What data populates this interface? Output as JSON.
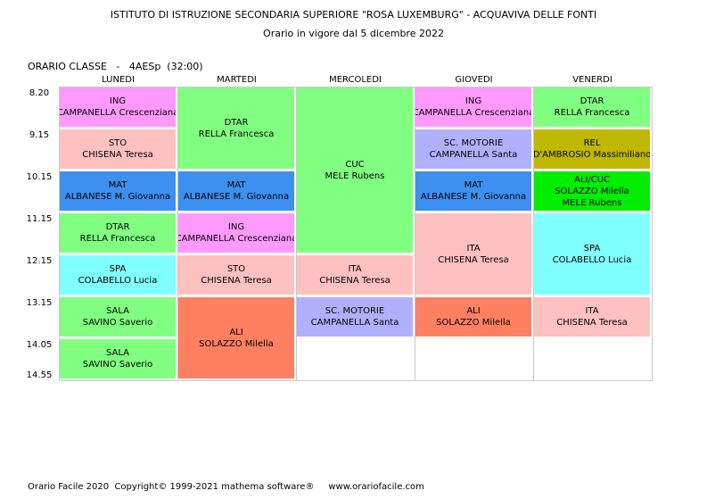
{
  "header": {
    "title": "ISTITUTO DI ISTRUZIONE SECONDARIA SUPERIORE \"ROSA LUXEMBURG\" - ACQUAVIVA DELLE FONTI",
    "subtitle": "Orario in vigore dal 5 dicembre 2022"
  },
  "class_label": "ORARIO CLASSE   -   4AESp  (32:00)",
  "days": [
    "LUNEDI",
    "MARTEDI",
    "MERCOLEDI",
    "GIOVEDI",
    "VENERDI"
  ],
  "times": [
    "8.20",
    "9.15",
    "10.15",
    "11.15",
    "12.15",
    "13.15",
    "14.05",
    "14.55"
  ],
  "lessons": [
    {
      "day": 0,
      "start": 0,
      "span": 1,
      "subject": "ING",
      "teacher": "CAMPANELLA Crescenziana",
      "color": "#ff99ff"
    },
    {
      "day": 0,
      "start": 1,
      "span": 1,
      "subject": "STO",
      "teacher": "CHISENA Teresa",
      "color": "#ffc0c0"
    },
    {
      "day": 0,
      "start": 2,
      "span": 1,
      "subject": "MAT",
      "teacher": "ALBANESE M. Giovanna",
      "color": "#3d8ff0"
    },
    {
      "day": 0,
      "start": 3,
      "span": 1,
      "subject": "DTAR",
      "teacher": "RELLA Francesca",
      "color": "#80ff80"
    },
    {
      "day": 0,
      "start": 4,
      "span": 1,
      "subject": "SPA",
      "teacher": "COLABELLO Lucia",
      "color": "#80ffff"
    },
    {
      "day": 0,
      "start": 5,
      "span": 1,
      "subject": "SALA",
      "teacher": "SAVINO Saverio",
      "color": "#80ff80"
    },
    {
      "day": 0,
      "start": 6,
      "span": 1,
      "subject": "SALA",
      "teacher": "SAVINO Saverio",
      "color": "#80ff80"
    },
    {
      "day": 1,
      "start": 0,
      "span": 2,
      "subject": "DTAR",
      "teacher": "RELLA Francesca",
      "color": "#80ff80"
    },
    {
      "day": 1,
      "start": 2,
      "span": 1,
      "subject": "MAT",
      "teacher": "ALBANESE M. Giovanna",
      "color": "#3d8ff0"
    },
    {
      "day": 1,
      "start": 3,
      "span": 1,
      "subject": "ING",
      "teacher": "CAMPANELLA Crescenziana",
      "color": "#ff99ff"
    },
    {
      "day": 1,
      "start": 4,
      "span": 1,
      "subject": "STO",
      "teacher": "CHISENA Teresa",
      "color": "#ffc0c0"
    },
    {
      "day": 1,
      "start": 5,
      "span": 2,
      "subject": "ALI",
      "teacher": "SOLAZZO Milella",
      "color": "#ff8060"
    },
    {
      "day": 2,
      "start": 0,
      "span": 4,
      "subject": "CUC",
      "teacher": "MELE Rubens",
      "color": "#80ff80"
    },
    {
      "day": 2,
      "start": 4,
      "span": 1,
      "subject": "ITA",
      "teacher": "CHISENA Teresa",
      "color": "#ffc0c0"
    },
    {
      "day": 2,
      "start": 5,
      "span": 1,
      "subject": "SC. MOTORIE",
      "teacher": "CAMPANELLA Santa",
      "color": "#b0b0ff"
    },
    {
      "day": 3,
      "start": 0,
      "span": 1,
      "subject": "ING",
      "teacher": "CAMPANELLA Crescenziana",
      "color": "#ff99ff"
    },
    {
      "day": 3,
      "start": 1,
      "span": 1,
      "subject": "SC. MOTORIE",
      "teacher": "CAMPANELLA Santa",
      "color": "#b0b0ff"
    },
    {
      "day": 3,
      "start": 2,
      "span": 1,
      "subject": "MAT",
      "teacher": "ALBANESE M. Giovanna",
      "color": "#3d8ff0"
    },
    {
      "day": 3,
      "start": 3,
      "span": 2,
      "subject": "ITA",
      "teacher": "CHISENA Teresa",
      "color": "#ffc0c0"
    },
    {
      "day": 3,
      "start": 5,
      "span": 1,
      "subject": "ALI",
      "teacher": "SOLAZZO Milella",
      "color": "#ff8060"
    },
    {
      "day": 4,
      "start": 0,
      "span": 1,
      "subject": "DTAR",
      "teacher": "RELLA Francesca",
      "color": "#80ff80"
    },
    {
      "day": 4,
      "start": 1,
      "span": 1,
      "subject": "REL",
      "teacher": "D'AMBROSIO Massimiliano",
      "color": "#c0b800"
    },
    {
      "day": 4,
      "start": 2,
      "span": 1,
      "subject": "ALI/CUC",
      "teacher": "SOLAZZO Milella",
      "teacher2": "MELE Rubens",
      "color": "#00ee00"
    },
    {
      "day": 4,
      "start": 3,
      "span": 2,
      "subject": "SPA",
      "teacher": "COLABELLO Lucia",
      "color": "#80ffff"
    },
    {
      "day": 4,
      "start": 5,
      "span": 1,
      "subject": "ITA",
      "teacher": "CHISENA Teresa",
      "color": "#ffc0c0"
    }
  ],
  "footer": "Orario Facile 2020  Copyright© 1999-2021 mathema software®     www.orariofacile.com"
}
